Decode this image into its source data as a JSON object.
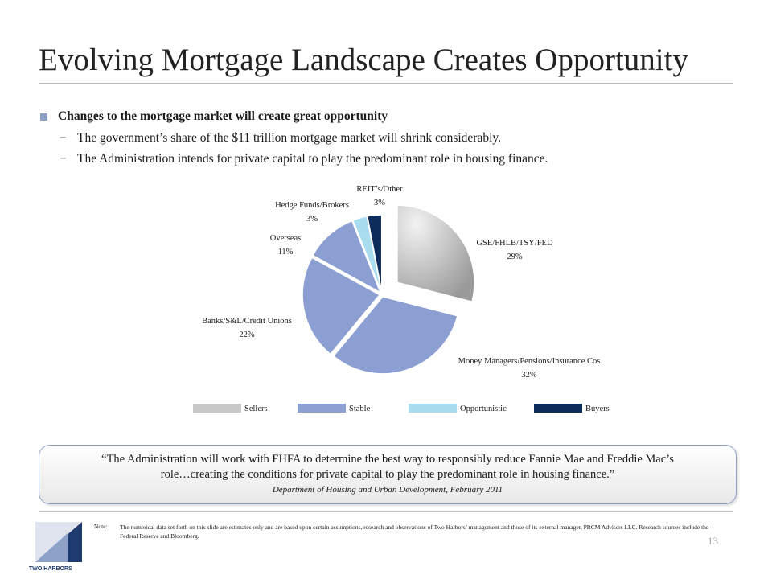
{
  "slide": {
    "title": "Evolving Mortgage Landscape Creates Opportunity",
    "bullet": "Changes to the mortgage market will create great opportunity",
    "sub_bullets": [
      "The government’s share of the $11 trillion mortgage market will shrink considerably.",
      "The Administration intends for private capital to play the predominant role in housing finance."
    ],
    "dash": "−",
    "quote": "“The Administration will work with FHFA to determine the best way to responsibly reduce Fannie Mae and Freddie Mac’s role…creating the conditions for private capital to play the predominant role in housing finance.”",
    "quote_source": "Department of Housing and Urban Development, February 2011",
    "note_label": "Note:",
    "note_text": "The numerical data set forth on this slide are estimates only and are based upon certain assumptions, research and observations of Two Harbors’ management and those of its external manager, PRCM Advisers LLC. Research sources include the Federal Reserve and Bloomberg.",
    "page_number": "13",
    "logo_text": "TWO HARBORS"
  },
  "chart_data": {
    "type": "pie",
    "slices": [
      {
        "label": "GSE/FHLB/TSY/FED",
        "value": 29,
        "pct_label": "29%",
        "group": "Sellers",
        "color": "#bdbdbd",
        "exploded": true
      },
      {
        "label": "Money Managers/Pensions/Insurance  Cos",
        "value": 32,
        "pct_label": "32%",
        "group": "Stable",
        "color": "#8b9fd2",
        "exploded": false
      },
      {
        "label": "Banks/S&L/Credit Unions",
        "value": 22,
        "pct_label": "22%",
        "group": "Stable",
        "color": "#8b9fd2",
        "exploded": false
      },
      {
        "label": "Overseas",
        "value": 11,
        "pct_label": "11%",
        "group": "Stable",
        "color": "#8b9fd2",
        "exploded": false
      },
      {
        "label": "Hedge Funds/Brokers",
        "value": 3,
        "pct_label": "3%",
        "group": "Opportunistic",
        "color": "#a9dcef",
        "exploded": false
      },
      {
        "label": "REIT’s/Other",
        "value": 3,
        "pct_label": "3%",
        "group": "Buyers",
        "color": "#0c2c5c",
        "exploded": false
      }
    ],
    "legend": [
      {
        "label": "Sellers",
        "color": "#c8c8c8"
      },
      {
        "label": "Stable",
        "color": "#8b9fd2"
      },
      {
        "label": "Opportunistic",
        "color": "#a9dcef"
      },
      {
        "label": "Buyers",
        "color": "#0c2c5c"
      }
    ],
    "legend_position": "bottom"
  }
}
